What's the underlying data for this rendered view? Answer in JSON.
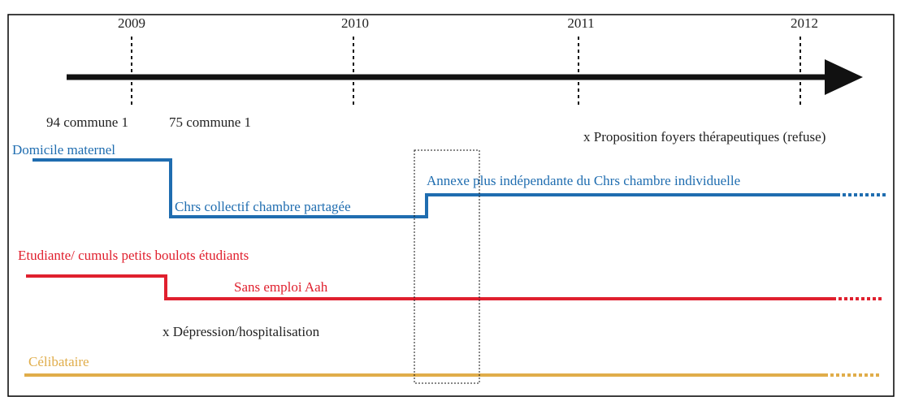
{
  "years": [
    "2009",
    "2010",
    "2011",
    "2012"
  ],
  "places": [
    "94 commune 1",
    "75 commune 1"
  ],
  "events": [
    "x Proposition foyers thérapeutiques (refuse)",
    "x Dépression/hospitalisation"
  ],
  "housing": [
    "Domicile maternel",
    "Chrs collectif chambre partagée",
    "Annexe plus indépendante du Chrs chambre individuelle"
  ],
  "activity": [
    "Etudiante/ cumuls petits boulots étudiants",
    "Sans emploi Aah"
  ],
  "relationship": [
    "Célibataire"
  ]
}
